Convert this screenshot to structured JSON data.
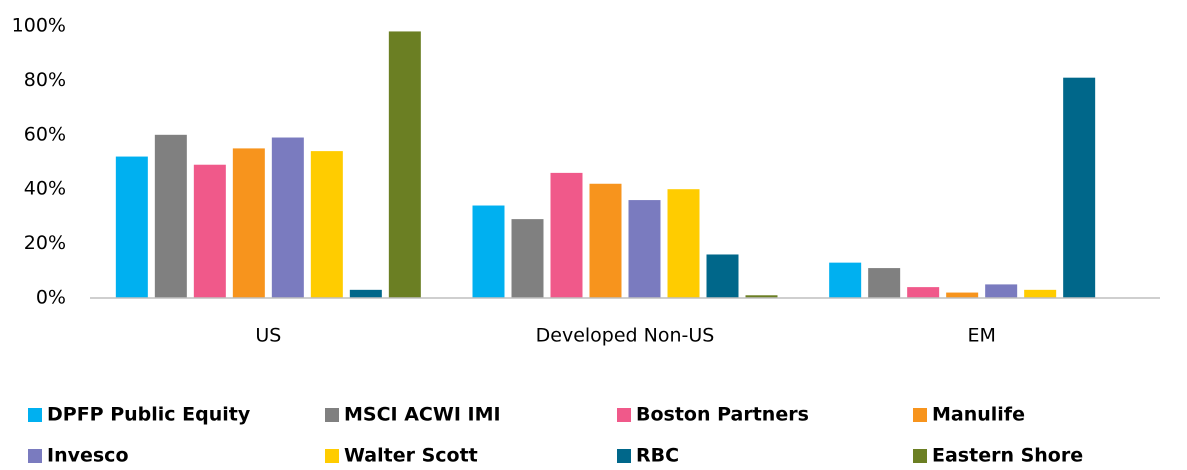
{
  "chart_data": {
    "type": "bar",
    "categories": [
      "US",
      "Developed Non-US",
      "EM"
    ],
    "series": [
      {
        "name": "DPFP Public Equity",
        "color": "#00b0f0",
        "values": [
          52,
          34,
          13
        ]
      },
      {
        "name": "MSCI ACWI IMI",
        "color": "#808080",
        "values": [
          60,
          29,
          11
        ]
      },
      {
        "name": "Boston Partners",
        "color": "#f0598a",
        "values": [
          49,
          46,
          4
        ]
      },
      {
        "name": "Manulife",
        "color": "#f7941d",
        "values": [
          55,
          42,
          2
        ]
      },
      {
        "name": "Invesco",
        "color": "#7a7bbf",
        "values": [
          59,
          36,
          5
        ]
      },
      {
        "name": "Walter Scott",
        "color": "#ffcc00",
        "values": [
          54,
          40,
          3
        ]
      },
      {
        "name": "RBC",
        "color": "#00678a",
        "values": [
          3,
          16,
          81
        ]
      },
      {
        "name": "Eastern Shore",
        "color": "#6b7f23",
        "values": [
          98,
          1,
          null
        ]
      }
    ],
    "ylim": [
      0,
      100
    ],
    "yticks": [
      {
        "value": 0,
        "label": "0%"
      },
      {
        "value": 20,
        "label": "20%"
      },
      {
        "value": 40,
        "label": "40%"
      },
      {
        "value": 60,
        "label": "60%"
      },
      {
        "value": 80,
        "label": "80%"
      },
      {
        "value": 100,
        "label": "100%"
      }
    ],
    "grid": false,
    "legend": "bottom"
  }
}
